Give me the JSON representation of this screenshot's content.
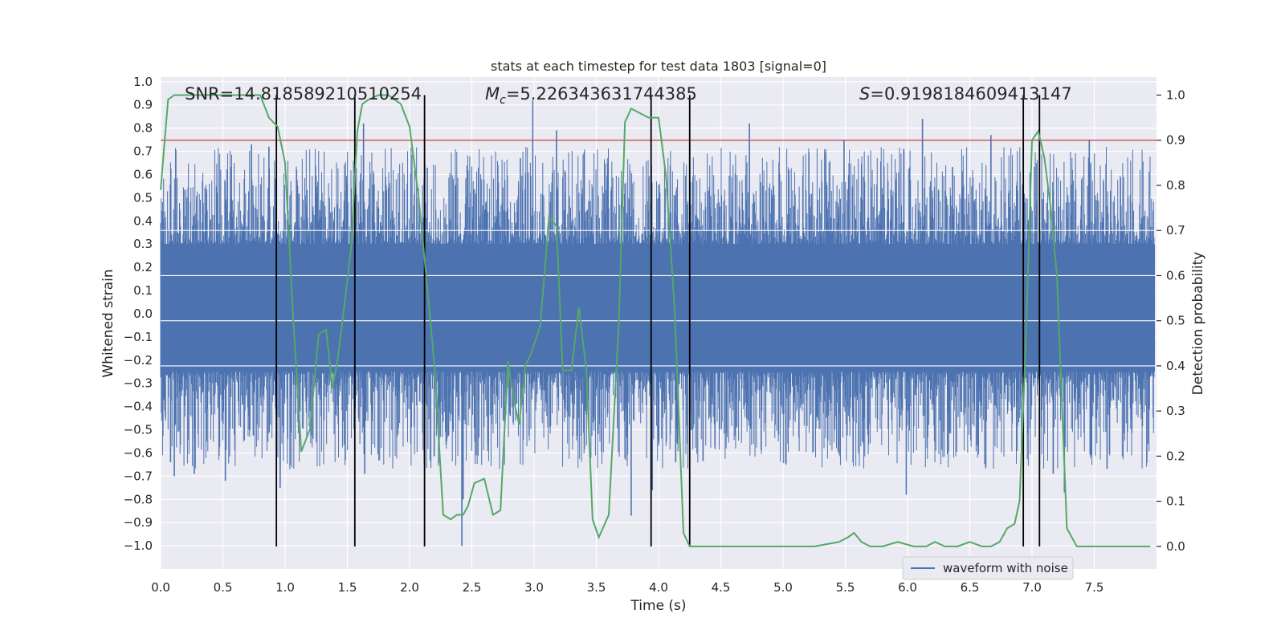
{
  "chart_data": {
    "type": "line",
    "title": "stats at each timestep for test data 1803 [signal=0]",
    "xlabel": "Time (s)",
    "ylabel_left": "Whitened strain",
    "ylabel_right": "Detection probability",
    "xlim": [
      0.0,
      8.0
    ],
    "ylim_left": [
      -1.1,
      1.02
    ],
    "ylim_right": [
      -0.05,
      1.04
    ],
    "x_ticks": [
      "0.0",
      "0.5",
      "1.0",
      "1.5",
      "2.0",
      "2.5",
      "3.0",
      "3.5",
      "4.0",
      "4.5",
      "5.0",
      "5.5",
      "6.0",
      "6.5",
      "7.0",
      "7.5"
    ],
    "y_ticks_left": [
      "1.0",
      "0.9",
      "0.8",
      "0.7",
      "0.6",
      "0.5",
      "0.4",
      "0.3",
      "0.2",
      "0.1",
      "0.0",
      "−0.1",
      "−0.2",
      "−0.3",
      "−0.4",
      "−0.5",
      "−0.6",
      "−0.7",
      "−0.8",
      "−0.9",
      "−1.0"
    ],
    "y_ticks_right": [
      "1.0",
      "0.9",
      "0.8",
      "0.7",
      "0.6",
      "0.5",
      "0.4",
      "0.3",
      "0.2",
      "0.1",
      "0.0"
    ],
    "annotations": {
      "snr": "SNR=14.818589210510254",
      "mc_symbol": "M",
      "mc_sub": "c",
      "mc_value": "=5.226343631744385",
      "s_symbol": "S",
      "s_value": "=0.9198184609413147"
    },
    "legend": {
      "label": "waveform with noise",
      "position": "lower-right"
    },
    "threshold": {
      "value": 0.9,
      "axis": "right",
      "color": "#c44e52"
    },
    "vertical_markers": [
      0.93,
      1.56,
      2.12,
      3.94,
      4.25,
      6.93,
      7.06
    ],
    "strain_series": {
      "name": "waveform with noise",
      "color": "#4c72b0",
      "sample_count": 2000,
      "core_band": [
        -0.25,
        0.3
      ],
      "spikes": [
        {
          "t": 0.08,
          "v": -0.64
        },
        {
          "t": 0.11,
          "v": -0.7
        },
        {
          "t": 0.27,
          "v": -0.69
        },
        {
          "t": 0.52,
          "v": -0.72
        },
        {
          "t": 0.73,
          "v": 0.73
        },
        {
          "t": 0.87,
          "v": 0.72
        },
        {
          "t": 0.96,
          "v": -0.75
        },
        {
          "t": 1.63,
          "v": 0.82
        },
        {
          "t": 1.64,
          "v": -0.69
        },
        {
          "t": 2.42,
          "v": -1.0
        },
        {
          "t": 2.43,
          "v": -0.8
        },
        {
          "t": 2.89,
          "v": 0.67
        },
        {
          "t": 2.99,
          "v": 0.92
        },
        {
          "t": 3.18,
          "v": 0.79
        },
        {
          "t": 3.78,
          "v": -0.87
        },
        {
          "t": 3.95,
          "v": -0.76
        },
        {
          "t": 4.25,
          "v": 0.78
        },
        {
          "t": 4.73,
          "v": 0.82
        },
        {
          "t": 5.49,
          "v": 0.75
        },
        {
          "t": 5.97,
          "v": 0.71
        },
        {
          "t": 6.12,
          "v": 0.84
        },
        {
          "t": 5.99,
          "v": -0.78
        },
        {
          "t": 6.67,
          "v": 0.77
        },
        {
          "t": 7.26,
          "v": -0.77
        },
        {
          "t": 7.46,
          "v": 0.75
        },
        {
          "t": 7.17,
          "v": -0.69
        }
      ]
    },
    "probability_series": {
      "name": "detection probability",
      "color": "#55a868",
      "x": [
        0.0,
        0.06,
        0.11,
        0.2,
        0.4,
        0.6,
        0.8,
        0.87,
        0.94,
        1.0,
        1.06,
        1.13,
        1.2,
        1.27,
        1.33,
        1.38,
        1.42,
        1.47,
        1.53,
        1.58,
        1.62,
        1.67,
        1.75,
        1.83,
        1.93,
        2.0,
        2.07,
        2.14,
        2.2,
        2.27,
        2.33,
        2.38,
        2.43,
        2.47,
        2.52,
        2.6,
        2.67,
        2.73,
        2.79,
        2.84,
        2.88,
        2.93,
        2.98,
        3.05,
        3.12,
        3.18,
        3.23,
        3.3,
        3.36,
        3.42,
        3.47,
        3.52,
        3.6,
        3.68,
        3.73,
        3.78,
        3.85,
        3.92,
        4.0,
        4.06,
        4.13,
        4.2,
        4.25,
        4.31,
        4.4,
        4.5,
        4.7,
        5.0,
        5.25,
        5.45,
        5.52,
        5.57,
        5.63,
        5.7,
        5.8,
        5.92,
        6.05,
        6.15,
        6.22,
        6.3,
        6.4,
        6.5,
        6.6,
        6.67,
        6.74,
        6.8,
        6.86,
        6.9,
        6.95,
        7.0,
        7.05,
        7.1,
        7.15,
        7.2,
        7.28,
        7.36,
        7.42,
        7.5,
        7.7,
        7.95
      ],
      "y": [
        0.79,
        0.99,
        1.0,
        1.0,
        1.0,
        1.0,
        1.0,
        0.95,
        0.93,
        0.85,
        0.53,
        0.21,
        0.26,
        0.47,
        0.48,
        0.35,
        0.41,
        0.52,
        0.66,
        0.92,
        0.98,
        0.99,
        1.0,
        1.0,
        0.98,
        0.93,
        0.78,
        0.58,
        0.4,
        0.07,
        0.06,
        0.07,
        0.07,
        0.09,
        0.14,
        0.15,
        0.07,
        0.08,
        0.41,
        0.32,
        0.27,
        0.4,
        0.43,
        0.49,
        0.73,
        0.71,
        0.39,
        0.39,
        0.53,
        0.39,
        0.06,
        0.02,
        0.07,
        0.49,
        0.94,
        0.97,
        0.96,
        0.95,
        0.95,
        0.82,
        0.52,
        0.03,
        0.0,
        0.0,
        0.0,
        0.0,
        0.0,
        0.0,
        0.0,
        0.01,
        0.02,
        0.03,
        0.01,
        0.0,
        0.0,
        0.01,
        0.0,
        0.0,
        0.01,
        0.0,
        0.0,
        0.01,
        0.0,
        0.0,
        0.01,
        0.04,
        0.05,
        0.1,
        0.45,
        0.9,
        0.92,
        0.86,
        0.75,
        0.6,
        0.04,
        0.0,
        0.0,
        0.0,
        0.0,
        0.0
      ]
    }
  }
}
